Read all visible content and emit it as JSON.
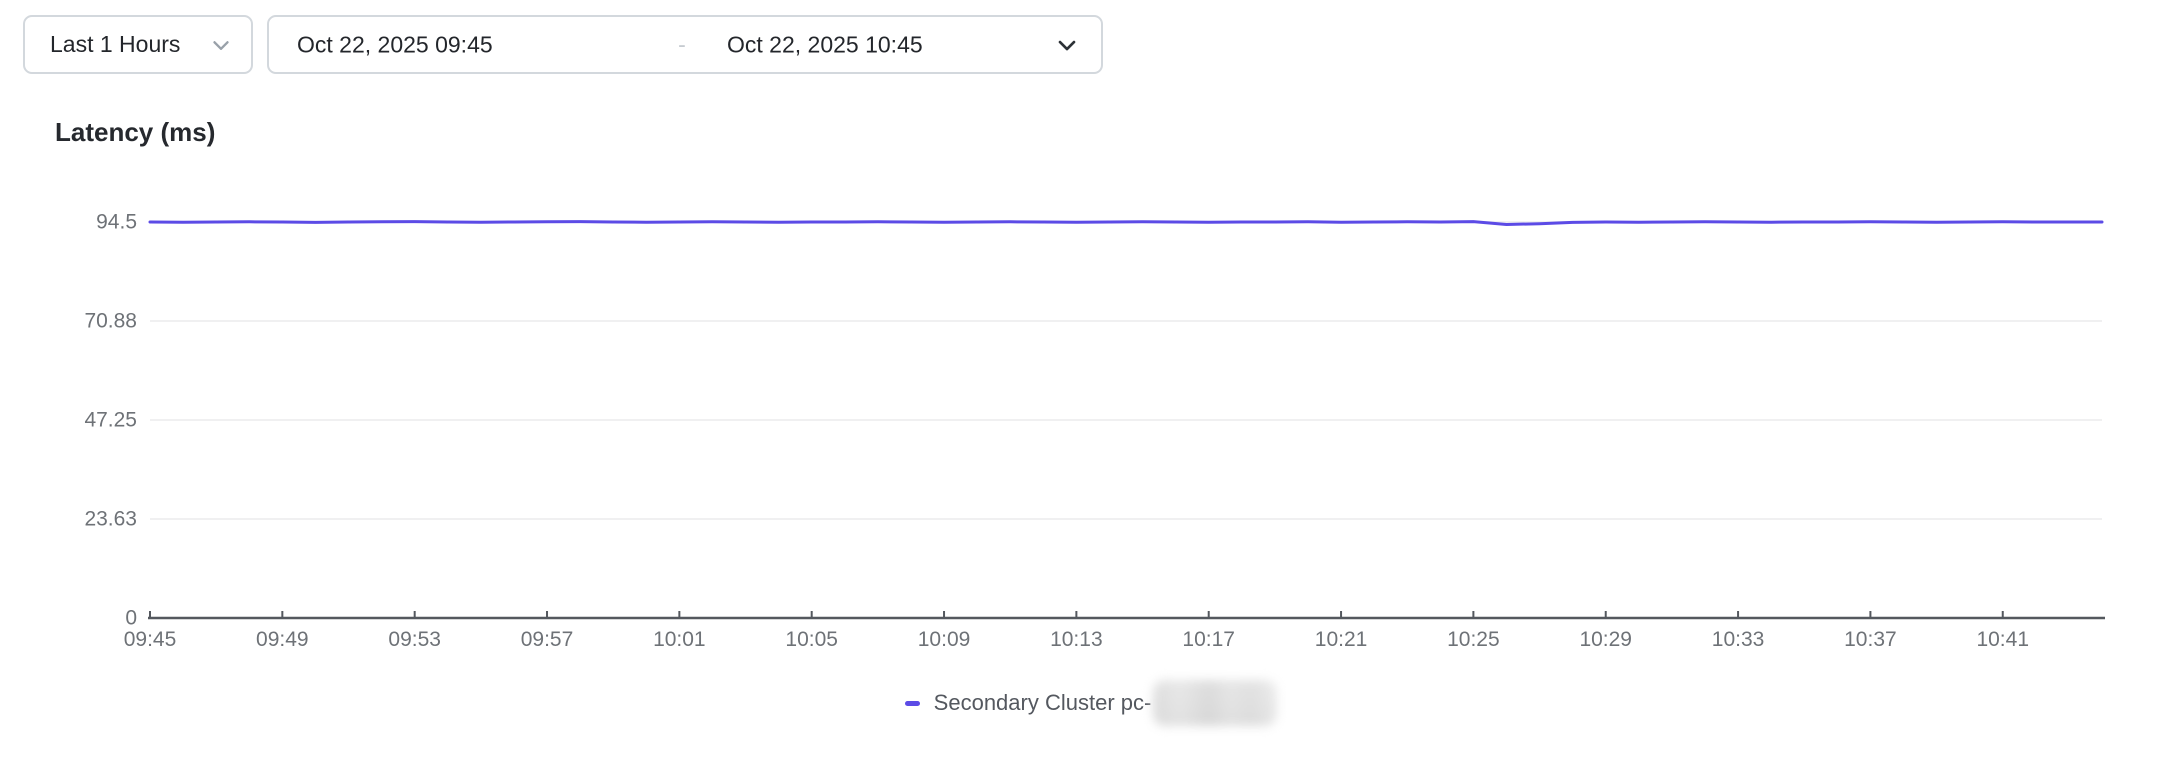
{
  "toolbar": {
    "range_select": {
      "label": "Last 1 Hours"
    },
    "date_range": {
      "start": "Oct 22, 2025 09:45",
      "separator": "-",
      "end": "Oct 22, 2025 10:45"
    }
  },
  "chart": {
    "title": "Latency (ms)"
  },
  "legend": {
    "label": "Secondary Cluster pc-",
    "suffix_redacted": true
  },
  "colors": {
    "accent_line": "#5c4be6",
    "grid_line": "#f0f0f1",
    "axis_line": "#54585e",
    "tick_text": "#6e7277",
    "title_text": "#26292e",
    "control_border": "#d3d8dd"
  },
  "chart_data": {
    "type": "line",
    "title": "Latency (ms)",
    "xlabel": "",
    "ylabel": "Latency (ms)",
    "ylim": [
      0,
      94.5
    ],
    "grid": "horizontal",
    "legend_position": "bottom",
    "x_tick_every": 4,
    "x": [
      "09:45",
      "09:46",
      "09:47",
      "09:48",
      "09:49",
      "09:50",
      "09:51",
      "09:52",
      "09:53",
      "09:54",
      "09:55",
      "09:56",
      "09:57",
      "09:58",
      "09:59",
      "10:00",
      "10:01",
      "10:02",
      "10:03",
      "10:04",
      "10:05",
      "10:06",
      "10:07",
      "10:08",
      "10:09",
      "10:10",
      "10:11",
      "10:12",
      "10:13",
      "10:14",
      "10:15",
      "10:16",
      "10:17",
      "10:18",
      "10:19",
      "10:20",
      "10:21",
      "10:22",
      "10:23",
      "10:24",
      "10:25",
      "10:26",
      "10:27",
      "10:28",
      "10:29",
      "10:30",
      "10:31",
      "10:32",
      "10:33",
      "10:34",
      "10:35",
      "10:36",
      "10:37",
      "10:38",
      "10:39",
      "10:40",
      "10:41",
      "10:42",
      "10:43",
      "10:44"
    ],
    "x_tick_labels": [
      "09:45",
      "09:49",
      "09:53",
      "09:57",
      "10:01",
      "10:05",
      "10:09",
      "10:13",
      "10:17",
      "10:21",
      "10:25",
      "10:29",
      "10:33",
      "10:37",
      "10:41"
    ],
    "y_ticks": [
      0,
      23.63,
      47.25,
      70.88,
      94.5
    ],
    "y_tick_labels": [
      "0",
      "23.63",
      "47.25",
      "70.88",
      "94.5"
    ],
    "series": [
      {
        "name": "Secondary Cluster pc-[redacted]",
        "color": "#5c4be6",
        "values": [
          94.5,
          94.45,
          94.5,
          94.55,
          94.5,
          94.4,
          94.5,
          94.55,
          94.6,
          94.5,
          94.45,
          94.5,
          94.55,
          94.6,
          94.5,
          94.45,
          94.5,
          94.55,
          94.5,
          94.45,
          94.5,
          94.5,
          94.55,
          94.5,
          94.45,
          94.5,
          94.55,
          94.5,
          94.45,
          94.5,
          94.55,
          94.5,
          94.45,
          94.5,
          94.5,
          94.55,
          94.45,
          94.5,
          94.55,
          94.5,
          94.6,
          93.9,
          94.1,
          94.4,
          94.5,
          94.45,
          94.5,
          94.55,
          94.5,
          94.45,
          94.5,
          94.5,
          94.55,
          94.5,
          94.45,
          94.5,
          94.55,
          94.5,
          94.5,
          94.5
        ]
      }
    ]
  }
}
